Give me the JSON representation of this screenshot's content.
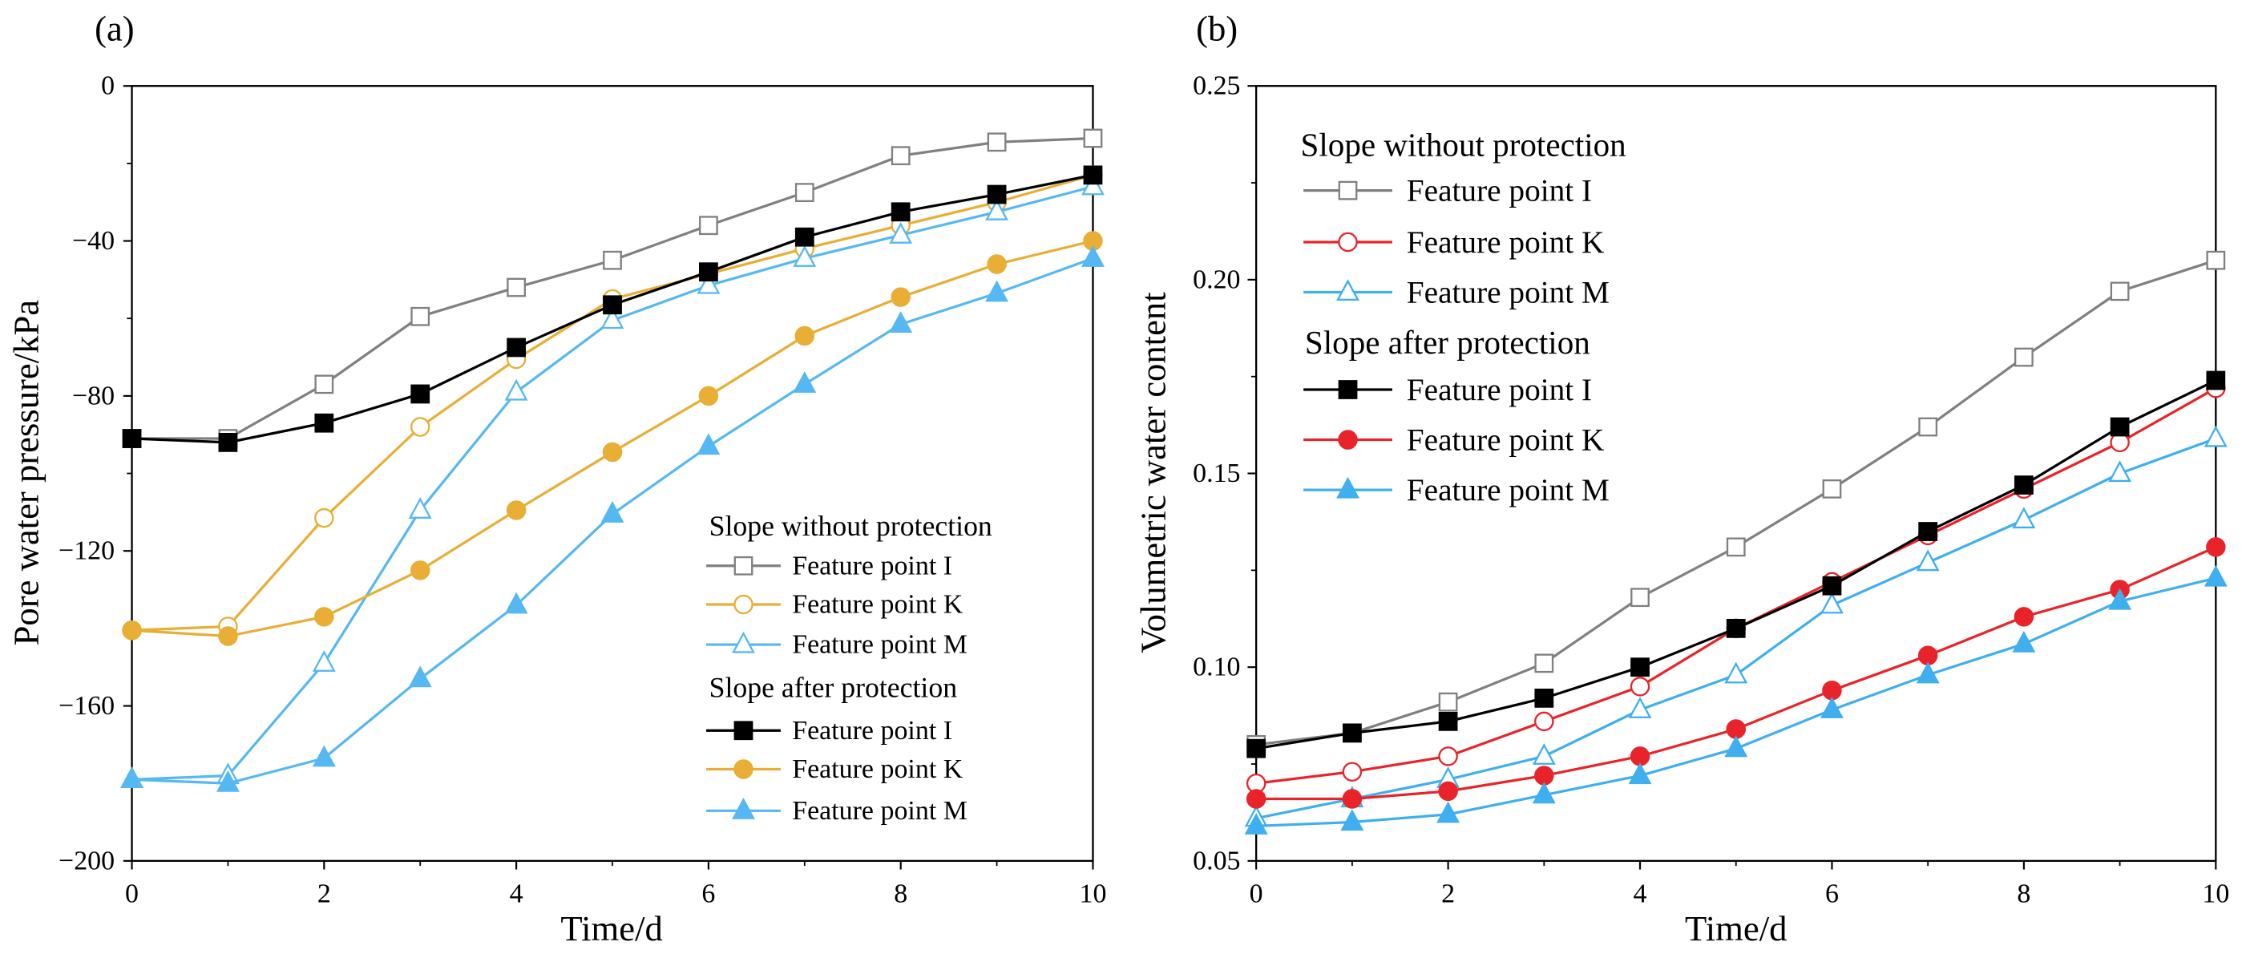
{
  "chart_data": [
    {
      "panel_label": "(a)",
      "type": "line",
      "xlabel": "Time/d",
      "ylabel": "Pore water pressure/kPa",
      "xlim": [
        0,
        10
      ],
      "ylim": [
        -200,
        0
      ],
      "xticks": [
        0,
        2,
        4,
        6,
        8,
        10
      ],
      "xtick_labels": [
        "0",
        "2",
        "4",
        "6",
        "8",
        "10"
      ],
      "yticks": [
        0,
        -40,
        -80,
        -120,
        -160,
        -200
      ],
      "ytick_labels": [
        "0",
        "−40",
        "−80",
        "−120",
        "−160",
        "−200"
      ],
      "grid": false,
      "legend": "bottom-right",
      "groups": [
        "Slope without protection",
        "Slope after protection"
      ],
      "x": [
        0,
        1,
        2,
        3,
        4,
        5,
        6,
        7,
        8,
        9,
        10
      ],
      "series": [
        {
          "name": "Feature point I",
          "group": 0,
          "color": "#808080",
          "marker": "square-icon",
          "filled": false,
          "values": [
            -91,
            -91,
            -77,
            -59.5,
            -52,
            -45,
            -36,
            -27.5,
            -18,
            -14.5,
            -13.5
          ]
        },
        {
          "name": "Feature point K",
          "group": 0,
          "color": "#E8AE35",
          "marker": "circle-icon",
          "filled": false,
          "values": [
            -140.5,
            -139.5,
            -111.5,
            -88,
            -70.5,
            -55,
            -48.5,
            -42,
            -36,
            -30,
            -23
          ]
        },
        {
          "name": "Feature point M",
          "group": 0,
          "color": "#56B8F2",
          "marker": "triangle-icon",
          "filled": false,
          "values": [
            -179,
            -178,
            -149,
            -109.5,
            -79,
            -60.5,
            -51.5,
            -44.5,
            -38.5,
            -32.5,
            -26
          ]
        },
        {
          "name": "Feature point I",
          "group": 1,
          "color": "#000000",
          "marker": "square-icon",
          "filled": true,
          "values": [
            -91,
            -92,
            -87,
            -79.5,
            -67.5,
            -56.5,
            -48,
            -39,
            -32.5,
            -28,
            -23
          ]
        },
        {
          "name": "Feature point K",
          "group": 1,
          "color": "#E8AE35",
          "marker": "circle-icon",
          "filled": true,
          "values": [
            -140.5,
            -142,
            -137,
            -125,
            -109.5,
            -94.5,
            -80,
            -64.5,
            -54.5,
            -46,
            -40
          ]
        },
        {
          "name": "Feature point M",
          "group": 1,
          "color": "#56B8F2",
          "marker": "triangle-icon",
          "filled": true,
          "values": [
            -179,
            -180,
            -173.5,
            -153,
            -134,
            -110.5,
            -93,
            -77,
            -61.5,
            -53.5,
            -44.5
          ]
        }
      ]
    },
    {
      "panel_label": "(b)",
      "type": "line",
      "xlabel": "Time/d",
      "ylabel": "Volumetric water content",
      "xlim": [
        0,
        10
      ],
      "ylim": [
        0.05,
        0.25
      ],
      "xticks": [
        0,
        2,
        4,
        6,
        8,
        10
      ],
      "xtick_labels": [
        "0",
        "2",
        "4",
        "6",
        "8",
        "10"
      ],
      "yticks": [
        0.05,
        0.1,
        0.15,
        0.2,
        0.25
      ],
      "ytick_labels": [
        "0.05",
        "0.10",
        "0.15",
        "0.20",
        "0.25"
      ],
      "grid": false,
      "legend": "top-left",
      "groups": [
        "Slope without protection",
        "Slope after protection"
      ],
      "x": [
        0,
        1,
        2,
        3,
        4,
        5,
        6,
        7,
        8,
        9,
        10
      ],
      "series": [
        {
          "name": "Feature point I",
          "group": 0,
          "color": "#808080",
          "marker": "square-icon",
          "filled": false,
          "values": [
            0.08,
            0.083,
            0.091,
            0.101,
            0.118,
            0.131,
            0.146,
            0.162,
            0.18,
            0.197,
            0.205
          ]
        },
        {
          "name": "Feature point K",
          "group": 0,
          "color": "#E8242A",
          "marker": "circle-icon",
          "filled": false,
          "values": [
            0.07,
            0.073,
            0.077,
            0.086,
            0.095,
            0.11,
            0.122,
            0.134,
            0.146,
            0.158,
            0.172
          ]
        },
        {
          "name": "Feature point M",
          "group": 0,
          "color": "#3FAFEF",
          "marker": "triangle-icon",
          "filled": false,
          "values": [
            0.061,
            0.066,
            0.071,
            0.077,
            0.089,
            0.098,
            0.116,
            0.127,
            0.138,
            0.15,
            0.159
          ]
        },
        {
          "name": "Feature point I",
          "group": 1,
          "color": "#000000",
          "marker": "square-icon",
          "filled": true,
          "values": [
            0.079,
            0.083,
            0.086,
            0.092,
            0.1,
            0.11,
            0.121,
            0.135,
            0.147,
            0.162,
            0.174
          ]
        },
        {
          "name": "Feature point K",
          "group": 1,
          "color": "#E8242A",
          "marker": "circle-icon",
          "filled": true,
          "values": [
            0.066,
            0.066,
            0.068,
            0.072,
            0.077,
            0.084,
            0.094,
            0.103,
            0.113,
            0.12,
            0.131
          ]
        },
        {
          "name": "Feature point M",
          "group": 1,
          "color": "#3FAFEF",
          "marker": "triangle-icon",
          "filled": true,
          "values": [
            0.059,
            0.06,
            0.062,
            0.067,
            0.072,
            0.079,
            0.089,
            0.098,
            0.106,
            0.117,
            0.123
          ]
        }
      ]
    }
  ]
}
